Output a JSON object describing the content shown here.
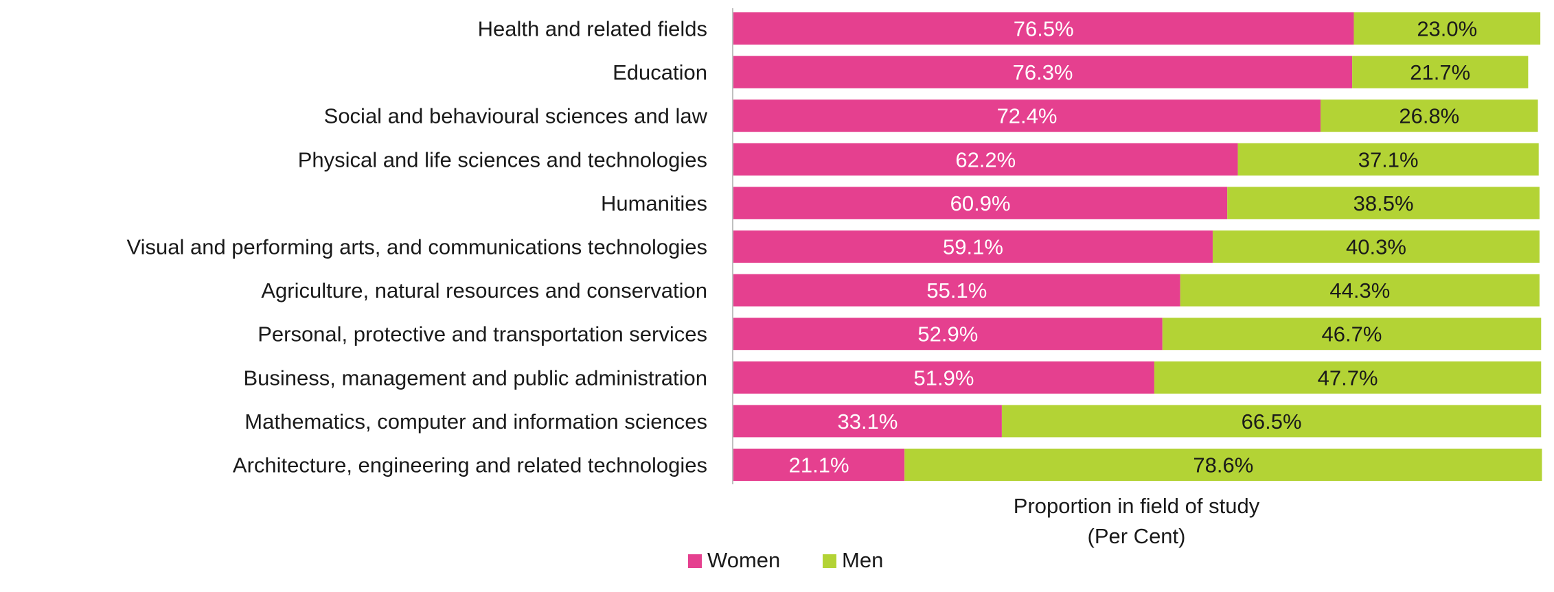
{
  "chart_data": {
    "type": "bar",
    "orientation": "horizontal",
    "stacked": true,
    "categories": [
      "Health and related fields",
      "Education",
      "Social and behavioural sciences and law",
      "Physical and life sciences and technologies",
      "Humanities",
      "Visual and performing arts, and communications technologies",
      "Agriculture, natural resources and conservation",
      "Personal, protective and transportation services",
      "Business, management and public administration",
      "Mathematics, computer and information sciences",
      "Architecture, engineering and related technologies"
    ],
    "series": [
      {
        "name": "Women",
        "color": "#E5408F",
        "label_color": "#ffffff",
        "values": [
          76.5,
          76.3,
          72.4,
          62.2,
          60.9,
          59.1,
          55.1,
          52.9,
          51.9,
          33.1,
          21.1
        ],
        "labels": [
          "76.5%",
          "76.3%",
          "72.4%",
          "62.2%",
          "60.9%",
          "59.1%",
          "55.1%",
          "52.9%",
          "51.9%",
          "33.1%",
          "21.1%"
        ]
      },
      {
        "name": "Men",
        "color": "#B3D335",
        "label_color": "#1a1a1a",
        "values": [
          23.0,
          21.7,
          26.8,
          37.1,
          38.5,
          40.3,
          44.3,
          46.7,
          47.7,
          66.5,
          78.6
        ],
        "labels": [
          "23.0%",
          "21.7%",
          "26.8%",
          "37.1%",
          "38.5%",
          "40.3%",
          "44.3%",
          "46.7%",
          "47.7%",
          "66.5%",
          "78.6%"
        ]
      }
    ],
    "xlim": [
      0,
      100
    ],
    "xlabel_line1": "Proportion in field of study",
    "xlabel_line2": "(Per Cent)",
    "grid": false,
    "legend_position": "bottom"
  }
}
